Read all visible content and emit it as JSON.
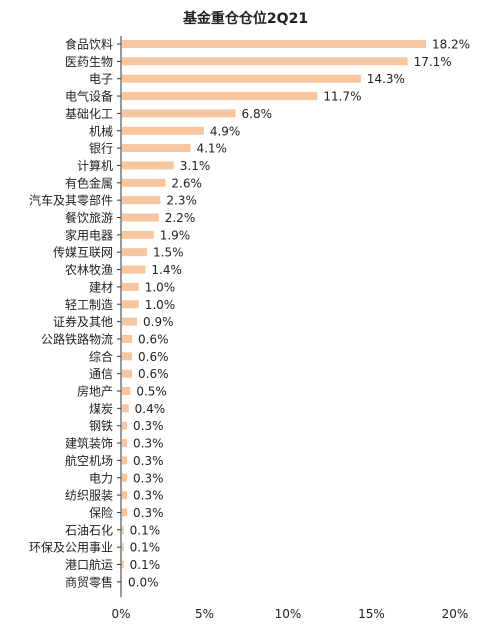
{
  "chart_data": {
    "type": "bar",
    "orientation": "horizontal",
    "title": "基金重仓仓位2Q21",
    "categories": [
      "食品饮料",
      "医药生物",
      "电子",
      "电气设备",
      "基础化工",
      "机械",
      "银行",
      "计算机",
      "有色金属",
      "汽车及其零部件",
      "餐饮旅游",
      "家用电器",
      "传媒互联网",
      "农林牧渔",
      "建材",
      "轻工制造",
      "证券及其他",
      "公路铁路物流",
      "综合",
      "通信",
      "房地产",
      "煤炭",
      "钢铁",
      "建筑装饰",
      "航空机场",
      "电力",
      "纺织服装",
      "保险",
      "石油石化",
      "环保及公用事业",
      "港口航运",
      "商贸零售"
    ],
    "values": [
      18.2,
      17.1,
      14.3,
      11.7,
      6.8,
      4.9,
      4.1,
      3.1,
      2.6,
      2.3,
      2.2,
      1.9,
      1.5,
      1.4,
      1.0,
      1.0,
      0.9,
      0.6,
      0.6,
      0.6,
      0.5,
      0.4,
      0.3,
      0.3,
      0.3,
      0.3,
      0.3,
      0.3,
      0.1,
      0.1,
      0.1,
      0.0
    ],
    "value_labels": [
      "18.2%",
      "17.1%",
      "14.3%",
      "11.7%",
      "6.8%",
      "4.9%",
      "4.1%",
      "3.1%",
      "2.6%",
      "2.3%",
      "2.2%",
      "1.9%",
      "1.5%",
      "1.4%",
      "1.0%",
      "1.0%",
      "0.9%",
      "0.6%",
      "0.6%",
      "0.6%",
      "0.5%",
      "0.4%",
      "0.3%",
      "0.3%",
      "0.3%",
      "0.3%",
      "0.3%",
      "0.3%",
      "0.1%",
      "0.1%",
      "0.1%",
      "0.0%"
    ],
    "x_ticks": [
      0,
      5,
      10,
      15,
      20
    ],
    "x_tick_labels": [
      "0%",
      "5%",
      "10%",
      "15%",
      "20%"
    ],
    "xlim": [
      0,
      20
    ],
    "bar_color": "#F5C6A0",
    "grid": false,
    "legend": "none"
  }
}
